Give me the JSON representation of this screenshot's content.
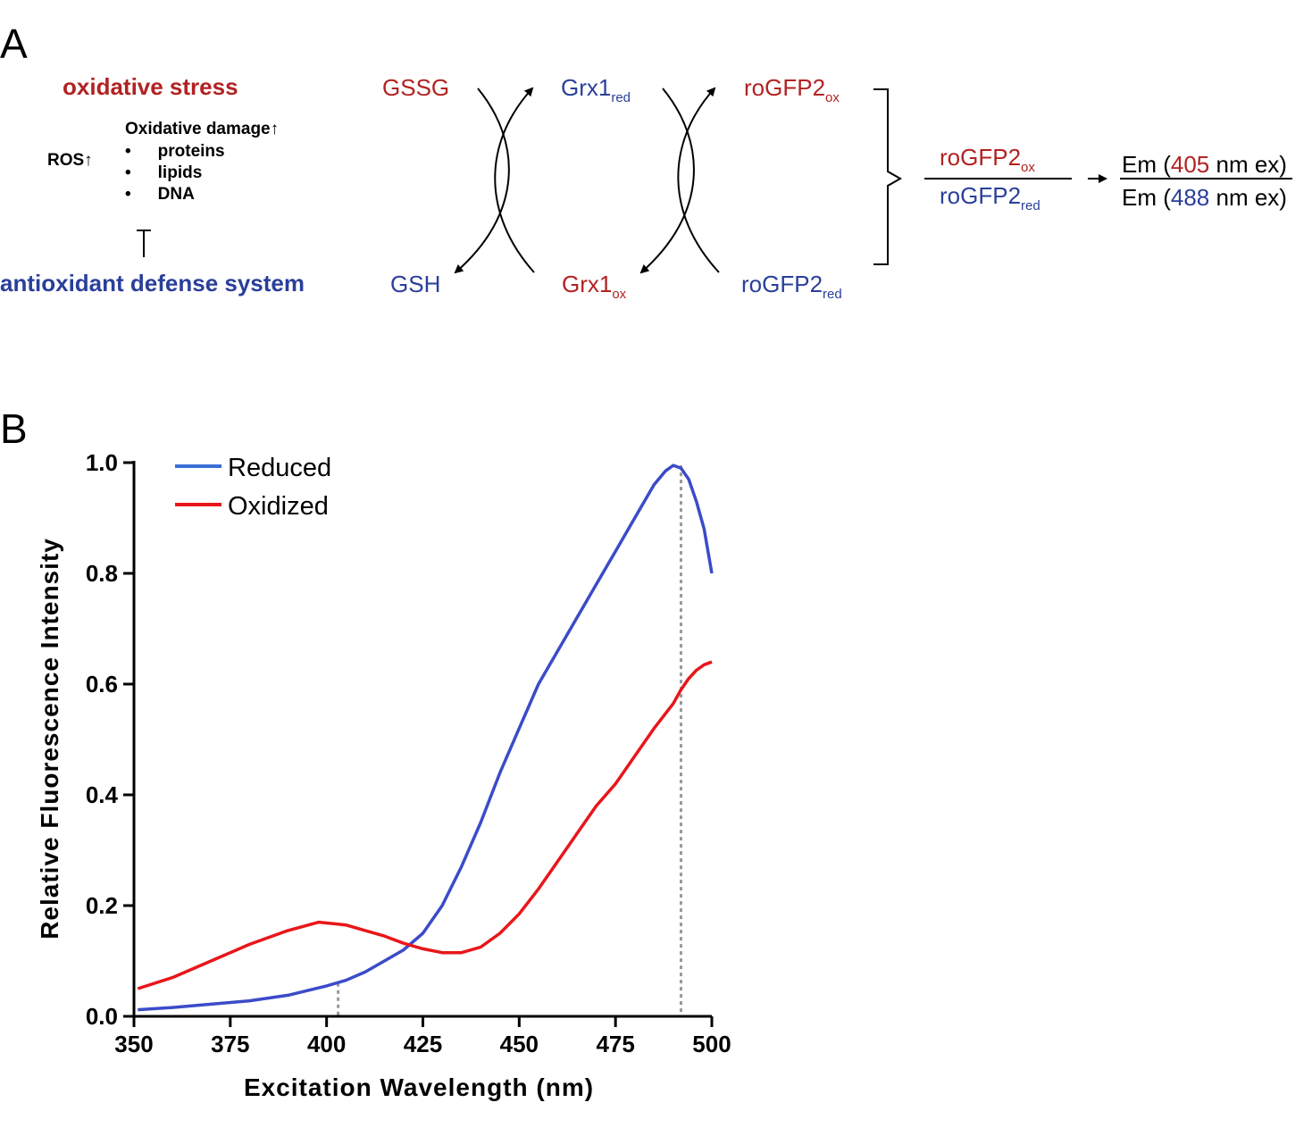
{
  "panel_a": {
    "label": "A",
    "oxidative_stress": "oxidative stress",
    "ros": "ROS↑",
    "damage_title": "Oxidative damage↑",
    "damage_items": [
      "proteins",
      "lipids",
      "DNA"
    ],
    "antioxidant": "antioxidant defense system",
    "gssg": "GSSG",
    "gsh": "GSH",
    "grx1": "Grx1",
    "sub_red": "red",
    "sub_ox": "ox",
    "rogfp2": "roGFP2",
    "em": "Em (",
    "nm_ex": " nm ex)",
    "wl_405": "405",
    "wl_488": "488",
    "colors": {
      "oxidized": "#b22222",
      "reduced": "#2a3f9a"
    }
  },
  "panel_b": {
    "label": "B"
  },
  "chart_data": {
    "type": "line",
    "title": "",
    "xlabel": "Excitation Wavelength  (nm)",
    "ylabel": "Relative Fluorescence Intensity",
    "xlim": [
      350,
      500
    ],
    "ylim": [
      0.0,
      1.0
    ],
    "xticks": [
      "350",
      "375",
      "400",
      "425",
      "450",
      "475",
      "500"
    ],
    "yticks": [
      "0.0",
      "0.2",
      "0.4",
      "0.6",
      "0.8",
      "1.0"
    ],
    "legend_position": "top-left",
    "series": [
      {
        "name": "Reduced",
        "color": "#3b4bc8",
        "x": [
          351,
          360,
          370,
          380,
          390,
          400,
          405,
          410,
          415,
          420,
          425,
          430,
          435,
          440,
          445,
          450,
          455,
          460,
          465,
          470,
          475,
          480,
          485,
          488,
          490,
          492,
          494,
          496,
          498,
          500
        ],
        "y": [
          0.012,
          0.016,
          0.022,
          0.028,
          0.038,
          0.055,
          0.065,
          0.08,
          0.1,
          0.12,
          0.15,
          0.2,
          0.27,
          0.35,
          0.44,
          0.52,
          0.6,
          0.66,
          0.72,
          0.78,
          0.84,
          0.9,
          0.96,
          0.985,
          0.995,
          0.99,
          0.97,
          0.93,
          0.88,
          0.8
        ]
      },
      {
        "name": "Oxidized",
        "color": "#e8161a",
        "x": [
          351,
          360,
          370,
          380,
          390,
          398,
          405,
          410,
          415,
          420,
          425,
          430,
          435,
          440,
          445,
          450,
          455,
          460,
          465,
          470,
          475,
          480,
          485,
          490,
          492,
          494,
          496,
          498,
          500
        ],
        "y": [
          0.05,
          0.07,
          0.1,
          0.13,
          0.155,
          0.17,
          0.165,
          0.155,
          0.145,
          0.132,
          0.122,
          0.115,
          0.115,
          0.125,
          0.15,
          0.185,
          0.23,
          0.28,
          0.33,
          0.38,
          0.42,
          0.47,
          0.52,
          0.565,
          0.59,
          0.61,
          0.625,
          0.635,
          0.64
        ]
      }
    ],
    "reference_lines": [
      {
        "x": 403,
        "y": 0.06
      },
      {
        "x": 492,
        "y": 0.995
      }
    ]
  }
}
